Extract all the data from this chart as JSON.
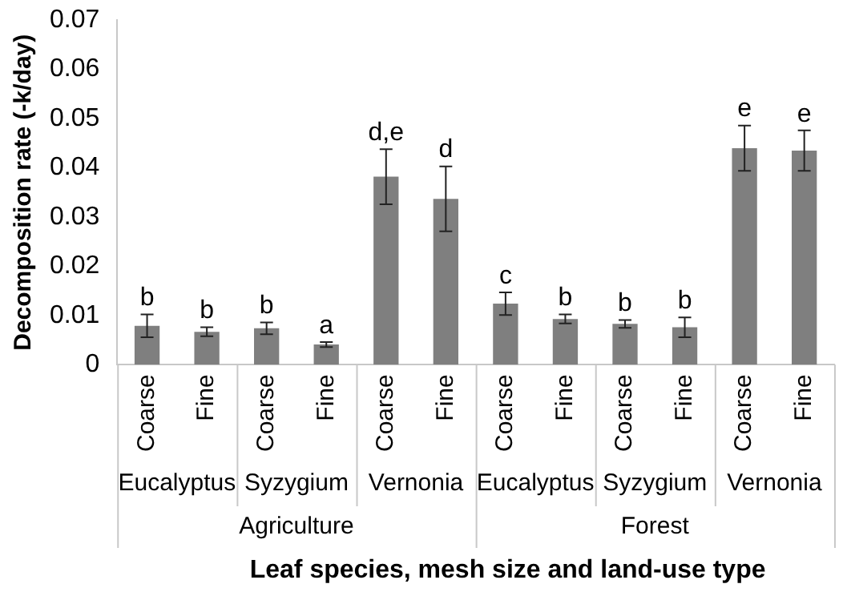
{
  "chart_data": {
    "type": "bar",
    "ylabel": "Decomposition rate (-k/day)",
    "xlabel": "Leaf species, mesh size and land-use type",
    "categories": [
      "Coarse",
      "Fine",
      "Coarse",
      "Fine",
      "Coarse",
      "Fine",
      "Coarse",
      "Fine",
      "Coarse",
      "Fine",
      "Coarse",
      "Fine"
    ],
    "values": [
      0.0079,
      0.0067,
      0.0074,
      0.0041,
      0.0382,
      0.0337,
      0.0124,
      0.0093,
      0.0083,
      0.0076,
      0.044,
      0.0435
    ],
    "errors": [
      0.0023,
      0.0009,
      0.0012,
      0.0005,
      0.0056,
      0.0066,
      0.0023,
      0.0009,
      0.0008,
      0.002,
      0.0046,
      0.0041
    ],
    "value_labels": [
      "b",
      "b",
      "b",
      "a",
      "d,e",
      "d",
      "c",
      "b",
      "b",
      "b",
      "e",
      "e"
    ],
    "color": "#7f7f7f",
    "annotations": [
      "Eucalyptus",
      "Syzygium",
      "Vernonia",
      "Eucalyptus",
      "Syzygium",
      "Vernonia",
      "Agriculture",
      "Forest"
    ],
    "ylim": [
      0,
      0.07
    ],
    "yticks": [
      0,
      0.01,
      0.02,
      0.03,
      0.04,
      0.05,
      0.06,
      0.07
    ],
    "grid": false,
    "legend": false
  }
}
